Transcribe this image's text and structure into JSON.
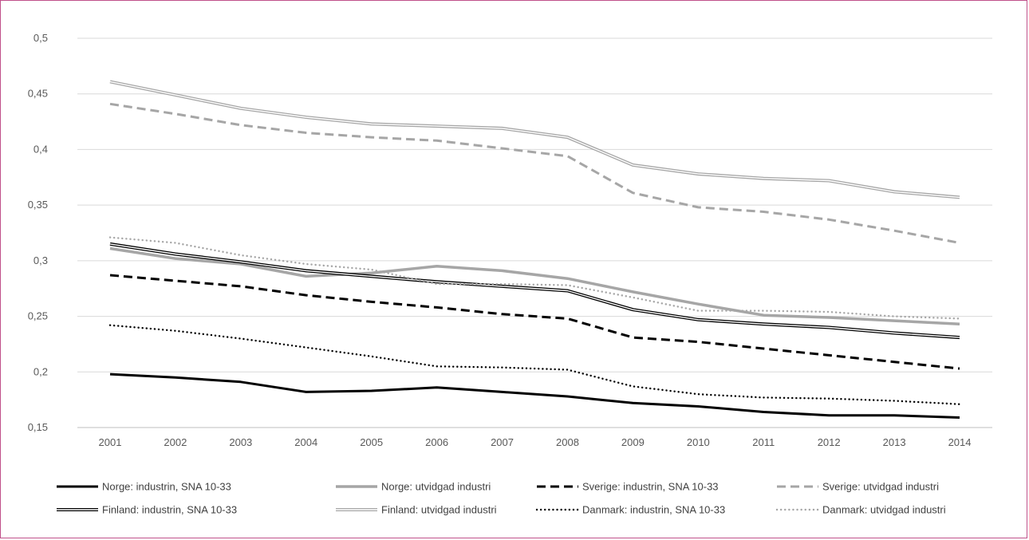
{
  "chart_data": {
    "type": "line",
    "title": "",
    "xlabel": "",
    "ylabel": "",
    "x": [
      "2001",
      "2002",
      "2003",
      "2004",
      "2005",
      "2006",
      "2007",
      "2008",
      "2009",
      "2010",
      "2011",
      "2012",
      "2013",
      "2014"
    ],
    "ylim": [
      0.15,
      0.5
    ],
    "yticks": [
      "0,15",
      "0,2",
      "0,25",
      "0,3",
      "0,35",
      "0,4",
      "0,45",
      "0,5"
    ],
    "grid": "horizontal",
    "legend_position": "bottom",
    "series": [
      {
        "name": "Norge: industrin, SNA 10-33",
        "color": "#000000",
        "style": "solid",
        "values": [
          0.198,
          0.195,
          0.191,
          0.182,
          0.183,
          0.186,
          0.182,
          0.178,
          0.172,
          0.169,
          0.164,
          0.161,
          0.161,
          0.159
        ]
      },
      {
        "name": "Norge: utvidgad industri",
        "color": "#a6a6a6",
        "style": "solid-thick",
        "values": [
          0.311,
          0.302,
          0.297,
          0.286,
          0.289,
          0.295,
          0.291,
          0.284,
          0.272,
          0.261,
          0.251,
          0.249,
          0.246,
          0.243
        ]
      },
      {
        "name": "Sverige: industrin, SNA 10-33",
        "color": "#000000",
        "style": "dash",
        "values": [
          0.287,
          0.282,
          0.277,
          0.269,
          0.263,
          0.258,
          0.252,
          0.248,
          0.231,
          0.227,
          0.221,
          0.215,
          0.209,
          0.203
        ]
      },
      {
        "name": "Sverige: utvidgad industri",
        "color": "#a6a6a6",
        "style": "dash",
        "values": [
          0.441,
          0.432,
          0.422,
          0.415,
          0.411,
          0.408,
          0.401,
          0.394,
          0.361,
          0.348,
          0.344,
          0.337,
          0.327,
          0.316
        ]
      },
      {
        "name": "Finland: industrin, SNA 10-33",
        "color": "#000000",
        "style": "double",
        "values": [
          0.315,
          0.306,
          0.299,
          0.291,
          0.286,
          0.281,
          0.277,
          0.273,
          0.256,
          0.247,
          0.243,
          0.24,
          0.235,
          0.231
        ]
      },
      {
        "name": "Finland: utvidgad industri",
        "color": "#a6a6a6",
        "style": "double",
        "values": [
          0.461,
          0.449,
          0.437,
          0.429,
          0.423,
          0.421,
          0.419,
          0.411,
          0.386,
          0.378,
          0.374,
          0.372,
          0.362,
          0.357
        ]
      },
      {
        "name": "Danmark: industrin, SNA 10-33",
        "color": "#000000",
        "style": "dot",
        "values": [
          0.242,
          0.237,
          0.23,
          0.222,
          0.214,
          0.205,
          0.204,
          0.202,
          0.187,
          0.18,
          0.177,
          0.176,
          0.174,
          0.171
        ]
      },
      {
        "name": "Danmark: utvidgad industri",
        "color": "#a6a6a6",
        "style": "dot",
        "values": [
          0.321,
          0.316,
          0.305,
          0.297,
          0.292,
          0.279,
          0.279,
          0.278,
          0.267,
          0.255,
          0.255,
          0.254,
          0.25,
          0.248
        ]
      }
    ]
  }
}
